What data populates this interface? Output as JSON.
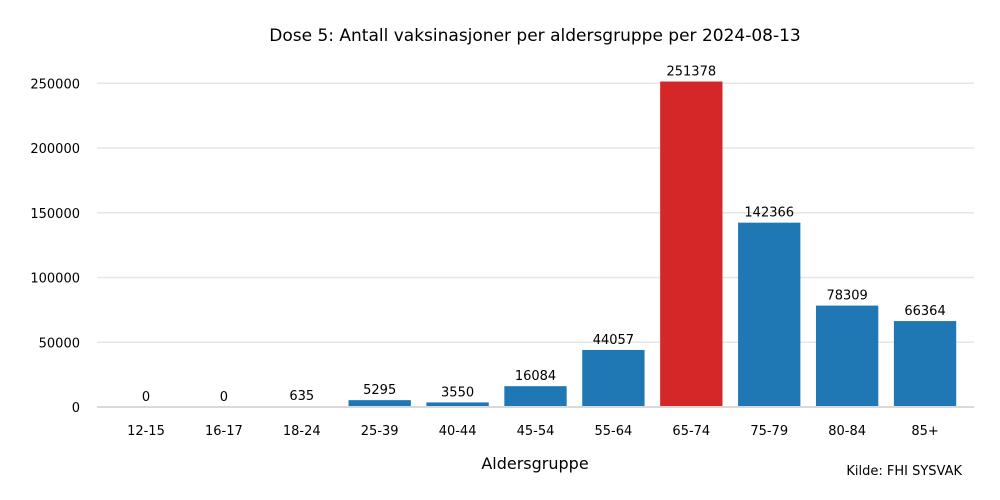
{
  "chart_data": {
    "type": "bar",
    "title": "Dose 5: Antall vaksinasjoner per aldersgruppe per 2024-08-13",
    "xlabel": "Aldersgruppe",
    "ylabel": "",
    "categories": [
      "12-15",
      "16-17",
      "18-24",
      "25-39",
      "40-44",
      "45-54",
      "55-64",
      "65-74",
      "75-79",
      "80-84",
      "85+"
    ],
    "values": [
      0,
      0,
      635,
      5295,
      3550,
      16084,
      44057,
      251378,
      142366,
      78309,
      66364
    ],
    "data_labels": [
      "0",
      "0",
      "635",
      "5295",
      "3550",
      "16084",
      "44057",
      "251378",
      "142366",
      "78309",
      "66364"
    ],
    "ylim": [
      0,
      268000
    ],
    "yticks": [
      0,
      50000,
      100000,
      150000,
      200000,
      250000
    ],
    "ytick_labels": [
      "0",
      "50000",
      "100000",
      "150000",
      "200000",
      "250000"
    ],
    "grid": true,
    "legend": "none",
    "colors": {
      "bar": "#1f77b4",
      "highlight": "#d62728",
      "grid": "#e6e6e6",
      "baseline": "#d9d9d9"
    },
    "highlight_index": 7,
    "source": "Kilde: FHI SYSVAK"
  }
}
